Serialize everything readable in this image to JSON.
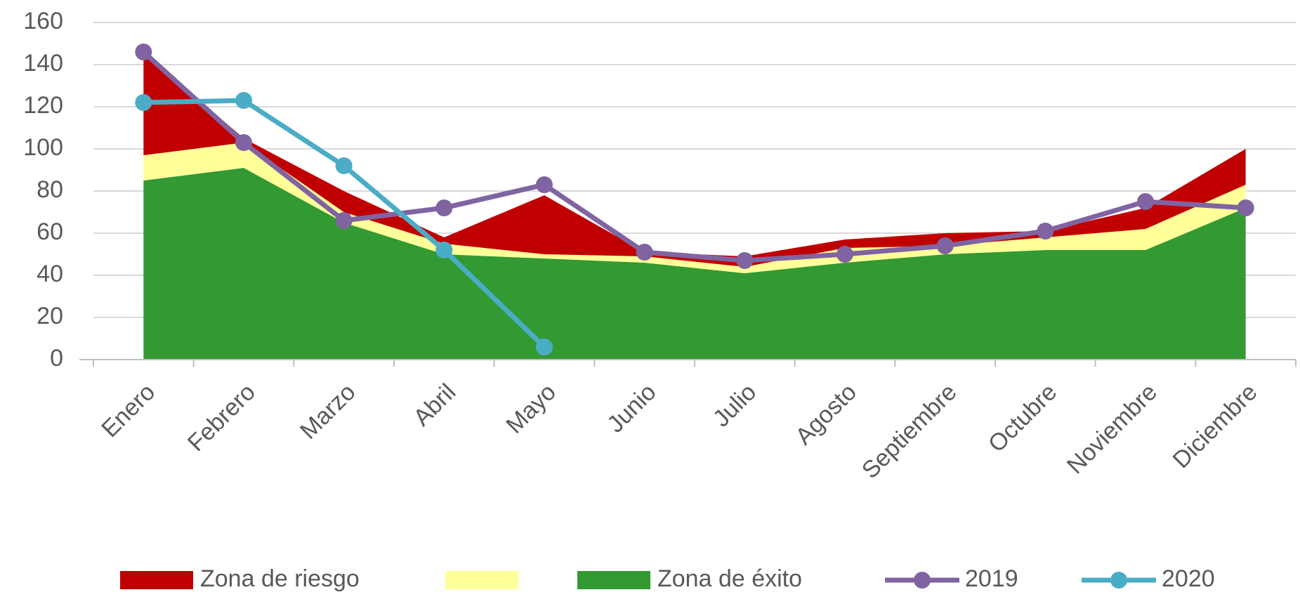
{
  "chart_data": {
    "type": "area",
    "categories": [
      "Enero",
      "Febrero",
      "Marzo",
      "Abril",
      "Mayo",
      "Junio",
      "Julio",
      "Agosto",
      "Septiembre",
      "Octubre",
      "Noviembre",
      "Diciembre"
    ],
    "series": [
      {
        "name": "Zona de riesgo",
        "type": "area",
        "color": "#c00000",
        "values": [
          49,
          2,
          10,
          3,
          28,
          2,
          5,
          4,
          6,
          3,
          10,
          17
        ]
      },
      {
        "type": "area",
        "color": "#ffff99",
        "values": [
          12,
          12,
          5,
          5,
          2,
          3,
          3,
          7,
          4,
          6,
          10,
          11
        ]
      },
      {
        "name": "Zona de éxito",
        "type": "area",
        "color": "#339933",
        "values": [
          85,
          91,
          65,
          50,
          48,
          46,
          41,
          46,
          50,
          52,
          52,
          72
        ]
      },
      {
        "name": "2019",
        "type": "line",
        "color": "#8064a2",
        "values": [
          146,
          103,
          66,
          72,
          83,
          51,
          47,
          50,
          54,
          61,
          75,
          72
        ]
      },
      {
        "name": "2020",
        "type": "line",
        "color": "#4bacc6",
        "values": [
          122,
          123,
          92,
          52,
          6,
          null,
          null,
          null,
          null,
          null,
          null,
          null
        ]
      }
    ],
    "stack_order": [
      2,
      1,
      0
    ],
    "ylim": [
      0,
      160
    ],
    "yticks": [
      0,
      20,
      40,
      60,
      80,
      100,
      120,
      140,
      160
    ],
    "grid": true,
    "legend": "bottom"
  }
}
